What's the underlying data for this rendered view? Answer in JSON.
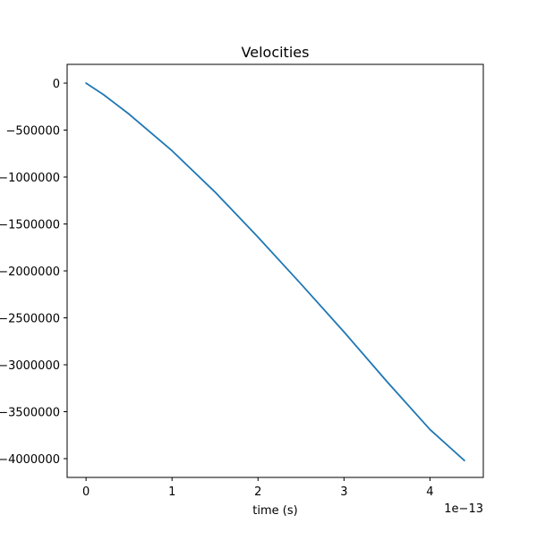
{
  "chart_data": {
    "type": "line",
    "title": "Velocities",
    "xlabel": "time (s)",
    "ylabel": "",
    "x_offset_label": "1e−13",
    "xlim": [
      -0.22,
      4.62
    ],
    "ylim": [
      -4200000,
      200000
    ],
    "x_ticks": [
      0,
      1,
      2,
      3,
      4
    ],
    "x_tick_labels": [
      "0",
      "1",
      "2",
      "3",
      "4"
    ],
    "y_ticks": [
      0,
      -500000,
      -1000000,
      -1500000,
      -2000000,
      -2500000,
      -3000000,
      -3500000,
      -4000000
    ],
    "y_tick_labels": [
      "0",
      "−500000",
      "−1000000",
      "−1500000",
      "−2000000",
      "−2500000",
      "−3000000",
      "−3500000",
      "−4000000"
    ],
    "grid": false,
    "legend": "none",
    "series": [
      {
        "color": "#1f77b4",
        "x": [
          0,
          0.2,
          0.5,
          1.0,
          1.5,
          2.0,
          2.5,
          3.0,
          3.5,
          4.0,
          4.4
        ],
        "y": [
          0,
          -120000,
          -330000,
          -720000,
          -1160000,
          -1640000,
          -2140000,
          -2650000,
          -3180000,
          -3690000,
          -4020000
        ]
      }
    ]
  }
}
